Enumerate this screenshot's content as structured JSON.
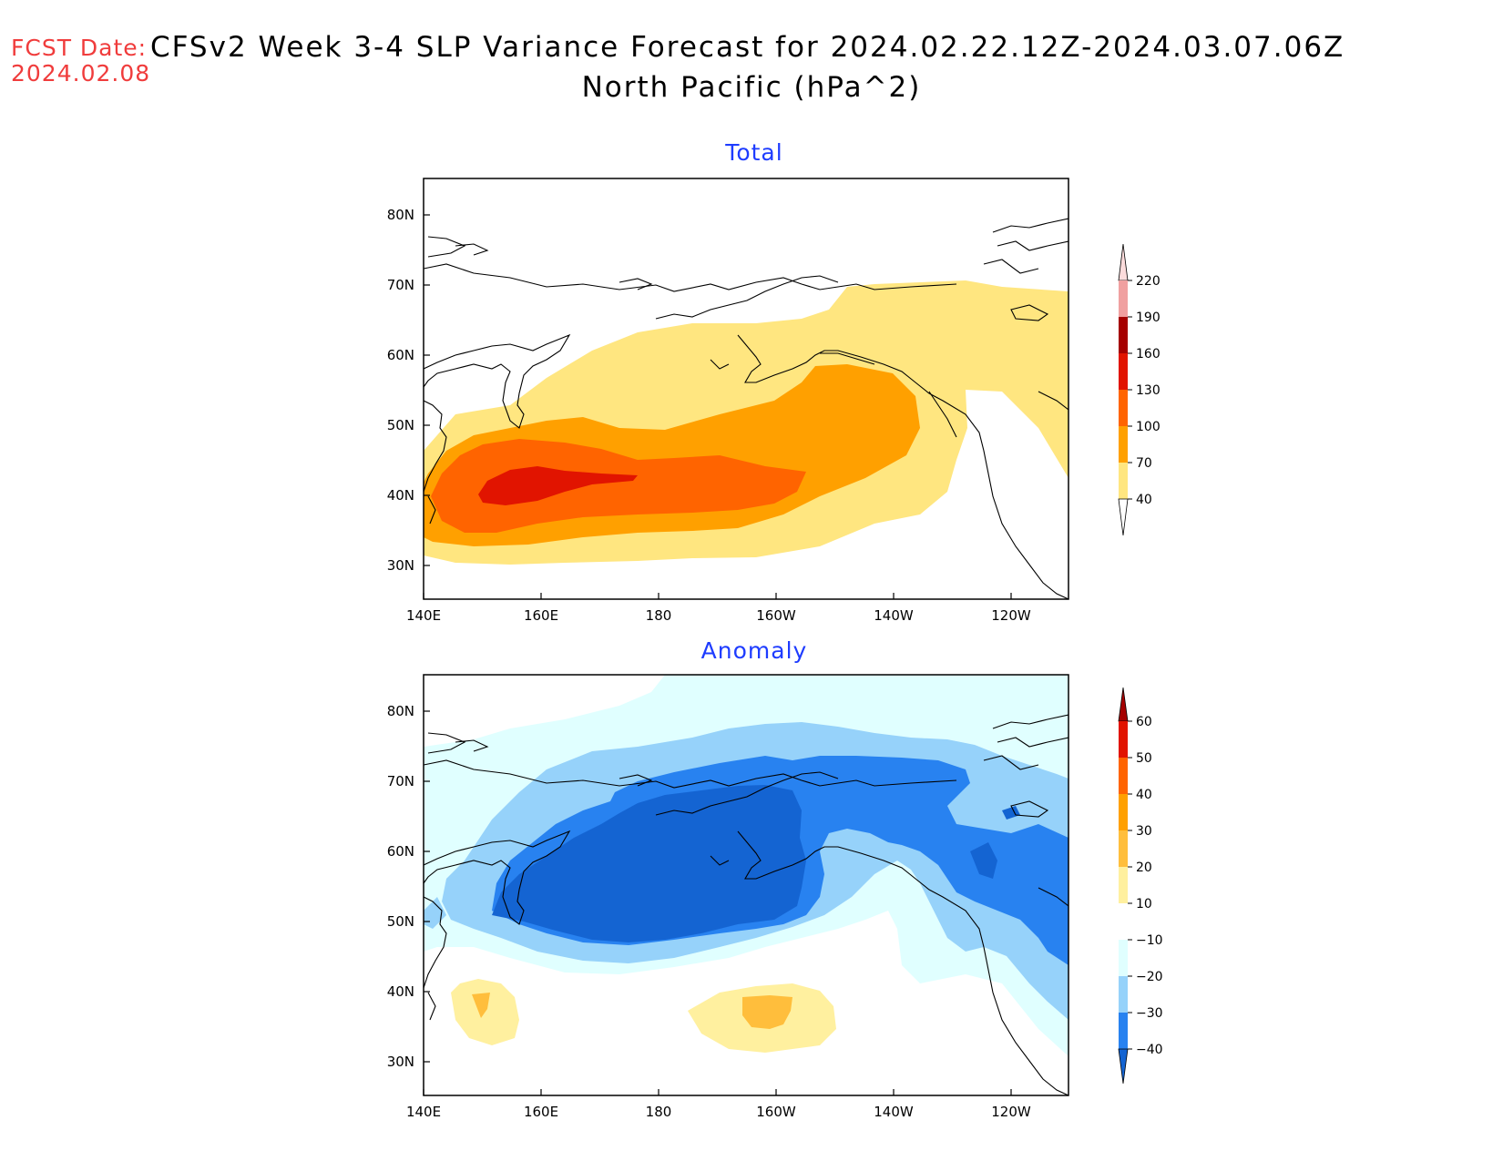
{
  "header": {
    "fcst_label": "FCST Date:",
    "fcst_date": "2024.02.08",
    "title_line1": "CFSv2 Week 3-4 SLP Variance Forecast for 2024.02.22.12Z-2024.03.07.06Z",
    "title_line2": "North Pacific (hPa^2)"
  },
  "axes": {
    "lat_labels": [
      "80N",
      "70N",
      "60N",
      "50N",
      "40N",
      "30N"
    ],
    "lon_labels": [
      "140E",
      "160E",
      "180",
      "160W",
      "140W",
      "120W"
    ]
  },
  "panels": [
    {
      "title": "Total",
      "colorbar": {
        "levels": [
          "40",
          "70",
          "100",
          "130",
          "160",
          "190",
          "220"
        ],
        "colors": [
          "#ffe680",
          "#ffa000",
          "#ff6400",
          "#e11400",
          "#a50000",
          "#f0a0a0",
          "#fcdcdc"
        ]
      }
    },
    {
      "title": "Anomaly",
      "colorbar": {
        "levels": [
          "60",
          "50",
          "40",
          "30",
          "20",
          "10",
          "−10",
          "−20",
          "−30",
          "−40"
        ],
        "colors_top_to_bottom": [
          "#a50000",
          "#e11400",
          "#ff6400",
          "#ffa000",
          "#ffbe3c",
          "#fff09f",
          "#ffffff",
          "#e0ffff",
          "#96d2fa",
          "#2882f0",
          "#1464d2"
        ]
      }
    }
  ]
}
